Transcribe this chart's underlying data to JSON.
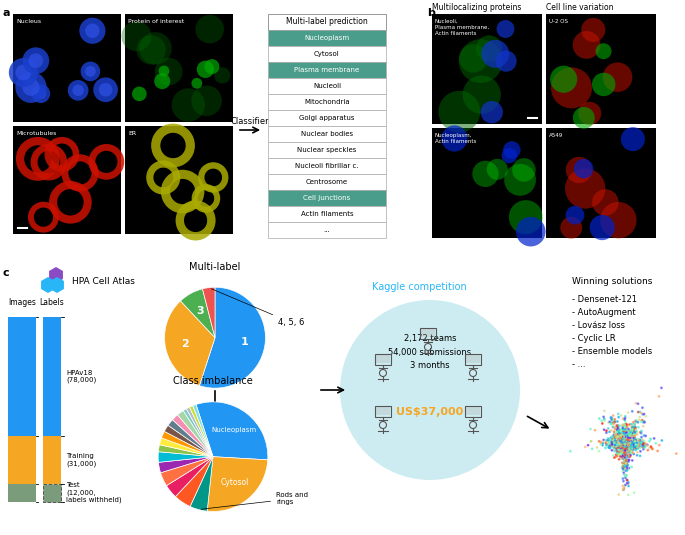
{
  "panel_a_label": "a",
  "panel_b_label": "b",
  "panel_c_label": "c",
  "table_rows": [
    {
      "label": "Nucleoplasm",
      "highlighted": true
    },
    {
      "label": "Cytosol",
      "highlighted": false
    },
    {
      "label": "Plasma membrane",
      "highlighted": true
    },
    {
      "label": "Nucleoli",
      "highlighted": false
    },
    {
      "label": "Mitochondria",
      "highlighted": false
    },
    {
      "label": "Golgi apparatus",
      "highlighted": false
    },
    {
      "label": "Nuclear bodies",
      "highlighted": false
    },
    {
      "label": "Nuclear speckles",
      "highlighted": false
    },
    {
      "label": "Nucleoli fibrillar c.",
      "highlighted": false
    },
    {
      "label": "Centrosome",
      "highlighted": false
    },
    {
      "label": "Cell junctions",
      "highlighted": true
    },
    {
      "label": "Actin filaments",
      "highlighted": false
    },
    {
      "label": "...",
      "highlighted": false
    }
  ],
  "table_header": "Multi-label prediction",
  "table_highlight_color": "#4a9d8a",
  "multilabel_pie": {
    "sizes": [
      55,
      33,
      8,
      4
    ],
    "labels": [
      "1",
      "2",
      "3",
      "4, 5, 6"
    ],
    "colors": [
      "#2196F3",
      "#F5A623",
      "#4CAF50",
      "#EF5350"
    ]
  },
  "class_pie": {
    "sizes": [
      30,
      25,
      5,
      5,
      4,
      4,
      3,
      3,
      2,
      2,
      2,
      2,
      2,
      2,
      2,
      1,
      1,
      1,
      1
    ],
    "colors": [
      "#2196F3",
      "#F5A623",
      "#009688",
      "#FF5722",
      "#E91E63",
      "#FF7043",
      "#9C27B0",
      "#00BCD4",
      "#8BC34A",
      "#FFEB3B",
      "#FF9800",
      "#795548",
      "#607D8B",
      "#F48FB1",
      "#A5D6A7",
      "#80CBC4",
      "#B0BEC5",
      "#CDDC39",
      "#80DEEA"
    ]
  },
  "bar_colors": [
    "#2196F3",
    "#F5A623",
    "#7a9c7a"
  ],
  "kaggle_text": [
    "2,172 teams",
    "54,000 submissions",
    "3 months"
  ],
  "kaggle_prize": "US$37,000",
  "kaggle_bg": "#c8eaf0",
  "winning_solutions": [
    "- Densenet-121",
    "- AutoAugment",
    "- Lovász loss",
    "- Cyclic LR",
    "- Ensemble models",
    "- ..."
  ],
  "b_header1": "Multilocalizing proteins",
  "b_header2": "Cell line variation",
  "multilocalizing_text1": "Nucleoli,\nPlasma membrane,\nActin filaments",
  "multilocalizing_text2": "Nucleoplasm,\nActin filaments",
  "cell_line_text1": "U-2 OS",
  "cell_line_text2": "A549"
}
